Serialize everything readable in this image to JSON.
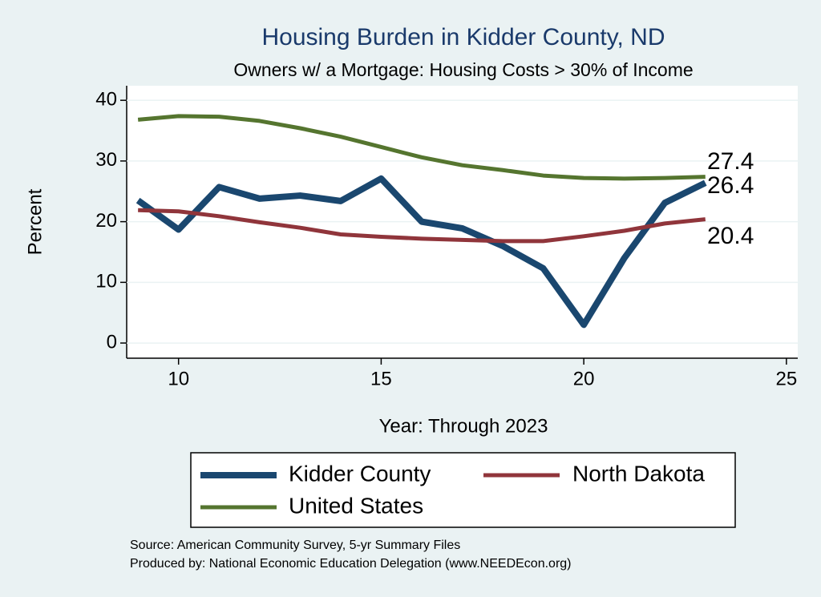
{
  "chart_data": {
    "type": "line",
    "title": "Housing Burden in Kidder County, ND",
    "subtitle": "Owners w/ a Mortgage: Housing Costs > 30% of Income",
    "x_label": "Year: Through 2023",
    "y_label": "Percent",
    "x": [
      9,
      10,
      11,
      12,
      13,
      14,
      15,
      16,
      17,
      18,
      19,
      20,
      21,
      22,
      23
    ],
    "series": [
      {
        "name": "Kidder County",
        "color": "#1a476f",
        "values": [
          23.5,
          18.7,
          25.7,
          23.8,
          24.3,
          23.4,
          27.1,
          20.0,
          18.9,
          16.0,
          12.3,
          3.0,
          14.0,
          23.1,
          26.4
        ]
      },
      {
        "name": "North Dakota",
        "color": "#90353b",
        "values": [
          21.9,
          21.7,
          20.9,
          19.9,
          19.0,
          17.9,
          17.5,
          17.2,
          17.0,
          16.8,
          16.8,
          17.6,
          18.5,
          19.7,
          20.4
        ]
      },
      {
        "name": "United States",
        "color": "#55752f",
        "values": [
          36.8,
          37.4,
          37.3,
          36.6,
          35.4,
          34.0,
          32.3,
          30.6,
          29.3,
          28.5,
          27.6,
          27.2,
          27.1,
          27.2,
          27.4
        ]
      }
    ],
    "xlim": [
      8.72,
      25.28
    ],
    "xticks": [
      10,
      15,
      20,
      25
    ],
    "ylim": [
      -2.5,
      42.4
    ],
    "yticks": [
      0,
      10,
      20,
      30,
      40
    ],
    "grid": true,
    "legend": "bottom",
    "notes": [
      "Source: American Community Survey, 5-yr Summary Files",
      "Produced by: National Economic Education Delegation (www.NEEDEcon.org)"
    ]
  }
}
